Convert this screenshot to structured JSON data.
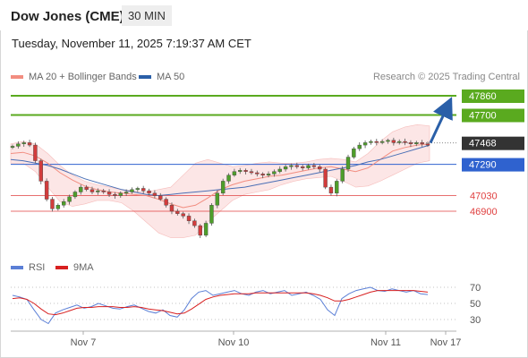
{
  "header": {
    "title": "Dow Jones (CME)",
    "timeframe": "30 MIN",
    "datetime": "Tuesday, November 11, 2025 7:19:37 AM CET"
  },
  "legend": {
    "bollinger_label": "MA 20 + Bollinger Bands",
    "ma50_label": "MA 50",
    "source": "Research © 2025 Trading Central"
  },
  "rsi_legend": {
    "rsi_label": "RSI",
    "ma9_label": "9MA"
  },
  "colors": {
    "green_level": "#5aaa1f",
    "blue_level": "#2f62cf",
    "red_level": "#e04040",
    "current_tag": "#333333",
    "bull_candle": "#4e9e2a",
    "bear_candle": "#d23c3c",
    "bollinger_fill": "#fbdedd",
    "ma20": "#f28d80",
    "ma50": "#4a6fb5",
    "rsi": "#5b7fd6",
    "rsi_ma": "#d82020",
    "arrow": "#2a5fa8"
  },
  "chart_data": [
    {
      "type": "candlestick",
      "title": "Dow Jones (CME) 30 MIN",
      "x_tick_labels": [
        "Nov 7",
        "Nov 10",
        "Nov 11",
        "Nov 17"
      ],
      "levels": [
        {
          "value": 47860,
          "label": "47860",
          "kind": "target",
          "style": "tag-green"
        },
        {
          "value": 47700,
          "label": "47700",
          "kind": "target",
          "style": "tag-green"
        },
        {
          "value": 47468,
          "label": "47468",
          "kind": "current",
          "style": "tag-dark"
        },
        {
          "value": 47290,
          "label": "47290",
          "kind": "pivot",
          "style": "tag-blue"
        },
        {
          "value": 47030,
          "label": "47030",
          "kind": "support",
          "style": "text-red"
        },
        {
          "value": 46900,
          "label": "46900",
          "kind": "support",
          "style": "text-red"
        }
      ],
      "price_path": [
        47440,
        47460,
        47470,
        47450,
        47320,
        47150,
        47000,
        46920,
        46950,
        46980,
        47020,
        47060,
        47100,
        47080,
        47060,
        47070,
        47060,
        47040,
        47030,
        47050,
        47060,
        47080,
        47090,
        47070,
        47050,
        47030,
        47000,
        46950,
        46900,
        46880,
        46860,
        46820,
        46780,
        46700,
        46800,
        46950,
        47050,
        47150,
        47200,
        47230,
        47240,
        47230,
        47220,
        47210,
        47200,
        47210,
        47230,
        47250,
        47270,
        47280,
        47270,
        47260,
        47280,
        47270,
        47250,
        47100,
        47050,
        47150,
        47250,
        47350,
        47420,
        47450,
        47470,
        47480,
        47470,
        47480,
        47490,
        47470,
        47480,
        47470,
        47460,
        47470,
        47460,
        47450
      ],
      "projection": {
        "from": 47468,
        "to": 47860
      },
      "ma20_path": [
        47380,
        47390,
        47360,
        47300,
        47220,
        47160,
        47110,
        47080,
        47060,
        47050,
        47040,
        47030,
        47000,
        46960,
        46930,
        46950,
        47010,
        47080,
        47120,
        47150,
        47170,
        47190,
        47200,
        47220,
        47240,
        47260,
        47270,
        47250,
        47230,
        47260,
        47330,
        47400,
        47430,
        47450,
        47460
      ],
      "bollinger_upper": [
        47460,
        47480,
        47460,
        47380,
        47280,
        47200,
        47150,
        47120,
        47100,
        47080,
        47070,
        47060,
        47080,
        47100,
        47200,
        47300,
        47330,
        47300,
        47270,
        47280,
        47300,
        47310,
        47300,
        47300,
        47310,
        47330,
        47340,
        47330,
        47310,
        47380,
        47480,
        47560,
        47600,
        47620,
        47610
      ],
      "bollinger_lower": [
        47300,
        47300,
        47230,
        47100,
        46980,
        46940,
        46960,
        46990,
        46990,
        46970,
        46900,
        46810,
        46720,
        46680,
        46680,
        46700,
        46810,
        46900,
        46990,
        47040,
        47060,
        47080,
        47120,
        47150,
        47170,
        47180,
        47190,
        47150,
        47100,
        47110,
        47150,
        47200,
        47250,
        47300,
        47320
      ],
      "ma50_path": [
        47330,
        47320,
        47300,
        47280,
        47250,
        47210,
        47170,
        47140,
        47110,
        47080,
        47060,
        47040,
        47030,
        47040,
        47050,
        47060,
        47070,
        47080,
        47090,
        47100,
        47120,
        47140,
        47160,
        47180,
        47200,
        47220,
        47240,
        47260,
        47280,
        47310,
        47330,
        47360,
        47390,
        47420,
        47450
      ]
    },
    {
      "type": "line",
      "title": "RSI",
      "y_ticks": [
        70,
        50,
        30
      ],
      "ylim": [
        20,
        80
      ],
      "series": [
        {
          "name": "RSI",
          "values": [
            60,
            58,
            55,
            42,
            30,
            25,
            38,
            42,
            45,
            48,
            44,
            46,
            50,
            47,
            44,
            43,
            46,
            48,
            44,
            40,
            38,
            42,
            35,
            33,
            42,
            56,
            64,
            66,
            60,
            62,
            64,
            66,
            62,
            60,
            64,
            66,
            62,
            64,
            66,
            60,
            62,
            64,
            60,
            55,
            42,
            35,
            56,
            62,
            66,
            68,
            70,
            66,
            65,
            68,
            66,
            64,
            66,
            62,
            61
          ]
        },
        {
          "name": "9MA",
          "values": [
            56,
            57,
            55,
            50,
            43,
            37,
            36,
            38,
            41,
            44,
            45,
            45,
            46,
            46,
            46,
            45,
            45,
            46,
            45,
            43,
            42,
            41,
            39,
            37,
            38,
            43,
            49,
            55,
            58,
            60,
            61,
            62,
            62,
            62,
            63,
            63,
            63,
            63,
            63,
            63,
            63,
            63,
            62,
            60,
            57,
            53,
            53,
            55,
            58,
            61,
            64,
            66,
            66,
            66,
            66,
            66,
            66,
            65,
            64
          ]
        }
      ]
    }
  ]
}
